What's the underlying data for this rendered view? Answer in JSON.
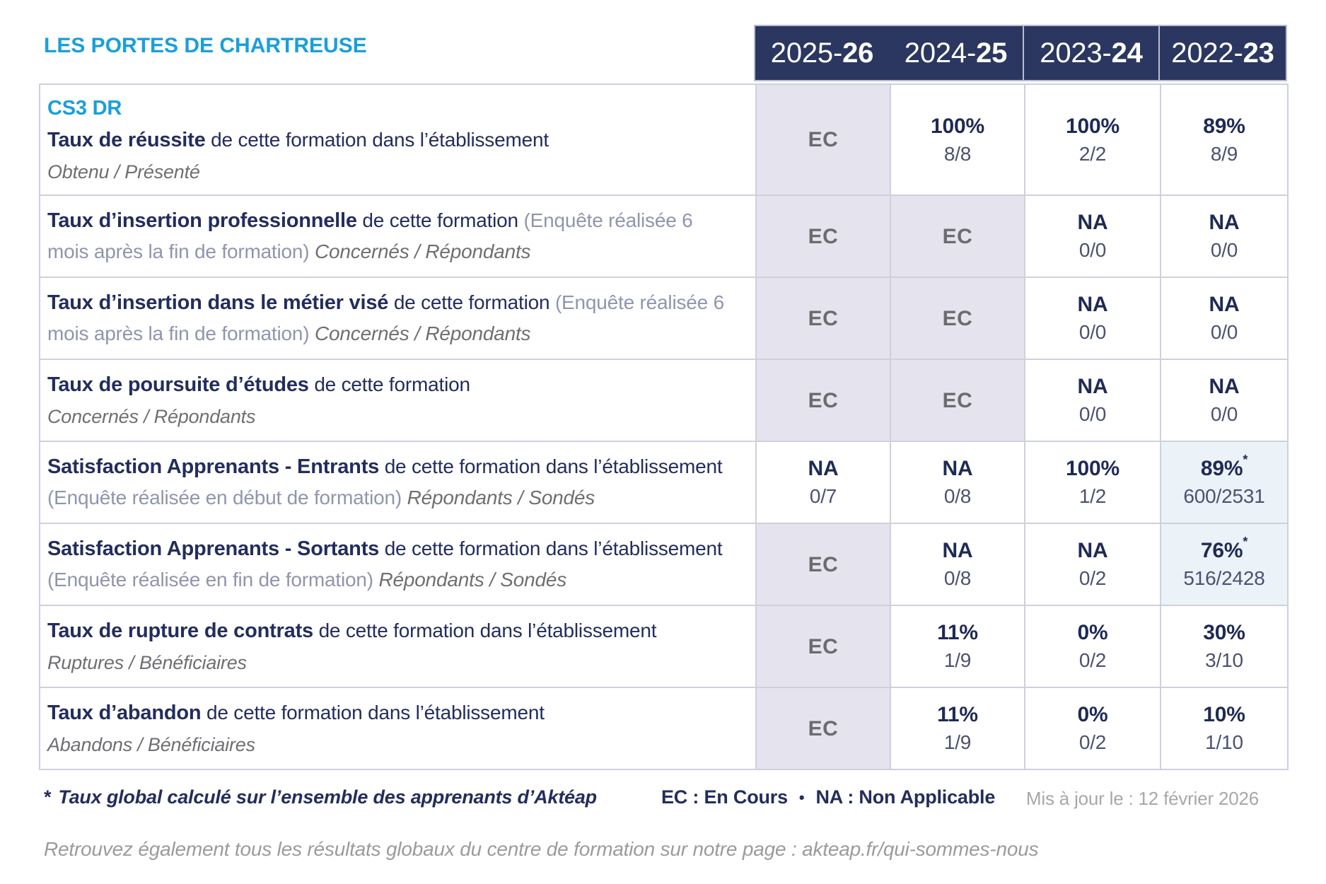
{
  "title": "LES PORTES DE CHARTREUSE",
  "header": {
    "years": [
      {
        "prefix": "2025-",
        "suffix": "26"
      },
      {
        "prefix": "2024-",
        "suffix": "25"
      },
      {
        "prefix": "2023-",
        "suffix": "24"
      },
      {
        "prefix": "2022-",
        "suffix": "23"
      }
    ]
  },
  "rows": [
    {
      "course": "CS3 DR",
      "bold": "Taux de réussite",
      "normal": "de cette formation dans l’établissement",
      "paren": "",
      "inline_sub": "",
      "block_sub": "Obtenu / Présenté",
      "cells": [
        {
          "bg": "gray",
          "main": "EC",
          "star": "",
          "sub": ""
        },
        {
          "bg": "white",
          "main": "100%",
          "star": "",
          "sub": "8/8"
        },
        {
          "bg": "white",
          "main": "100%",
          "star": "",
          "sub": "2/2"
        },
        {
          "bg": "white",
          "main": "89%",
          "star": "",
          "sub": "8/9"
        }
      ]
    },
    {
      "course": "",
      "bold": "Taux d’insertion professionnelle",
      "normal": "de cette formation",
      "paren": "(Enquête réalisée 6 mois après la fin de formation)",
      "inline_sub": "Concernés / Répondants",
      "block_sub": "",
      "cells": [
        {
          "bg": "gray",
          "main": "EC",
          "star": "",
          "sub": ""
        },
        {
          "bg": "gray",
          "main": "EC",
          "star": "",
          "sub": ""
        },
        {
          "bg": "white",
          "main": "NA",
          "star": "",
          "sub": "0/0"
        },
        {
          "bg": "white",
          "main": "NA",
          "star": "",
          "sub": "0/0"
        }
      ]
    },
    {
      "course": "",
      "bold": "Taux d’insertion dans le métier visé",
      "normal": "de cette formation",
      "paren": "(Enquête réalisée 6 mois après la fin de formation)",
      "inline_sub": "Concernés / Répondants",
      "block_sub": "",
      "cells": [
        {
          "bg": "gray",
          "main": "EC",
          "star": "",
          "sub": ""
        },
        {
          "bg": "gray",
          "main": "EC",
          "star": "",
          "sub": ""
        },
        {
          "bg": "white",
          "main": "NA",
          "star": "",
          "sub": "0/0"
        },
        {
          "bg": "white",
          "main": "NA",
          "star": "",
          "sub": "0/0"
        }
      ]
    },
    {
      "course": "",
      "bold": "Taux de poursuite d’études",
      "normal": "de cette formation",
      "paren": "",
      "inline_sub": "",
      "block_sub": "Concernés / Répondants",
      "cells": [
        {
          "bg": "gray",
          "main": "EC",
          "star": "",
          "sub": ""
        },
        {
          "bg": "gray",
          "main": "EC",
          "star": "",
          "sub": ""
        },
        {
          "bg": "white",
          "main": "NA",
          "star": "",
          "sub": "0/0"
        },
        {
          "bg": "white",
          "main": "NA",
          "star": "",
          "sub": "0/0"
        }
      ]
    },
    {
      "course": "",
      "bold": "Satisfaction Apprenants - Entrants",
      "normal": "de cette formation dans l’établissement",
      "paren": "(Enquête réalisée en début de formation)",
      "inline_sub": "Répondants / Sondés",
      "block_sub": "",
      "cells": [
        {
          "bg": "white",
          "main": "NA",
          "star": "",
          "sub": "0/7"
        },
        {
          "bg": "white",
          "main": "NA",
          "star": "",
          "sub": "0/8"
        },
        {
          "bg": "white",
          "main": "100%",
          "star": "",
          "sub": "1/2"
        },
        {
          "bg": "blue",
          "main": "89%",
          "star": "*",
          "sub": "600/2531"
        }
      ]
    },
    {
      "course": "",
      "bold": "Satisfaction Apprenants - Sortants",
      "normal": "de cette formation dans l’établissement",
      "paren": "(Enquête réalisée en fin de formation)",
      "inline_sub": "Répondants / Sondés",
      "block_sub": "",
      "cells": [
        {
          "bg": "gray",
          "main": "EC",
          "star": "",
          "sub": ""
        },
        {
          "bg": "white",
          "main": "NA",
          "star": "",
          "sub": "0/8"
        },
        {
          "bg": "white",
          "main": "NA",
          "star": "",
          "sub": "0/2"
        },
        {
          "bg": "blue",
          "main": "76%",
          "star": "*",
          "sub": "516/2428"
        }
      ]
    },
    {
      "course": "",
      "bold": "Taux de rupture de contrats",
      "normal": "de cette formation dans l’établissement",
      "paren": "",
      "inline_sub": "",
      "block_sub": "Ruptures / Bénéficiaires",
      "cells": [
        {
          "bg": "gray",
          "main": "EC",
          "star": "",
          "sub": ""
        },
        {
          "bg": "white",
          "main": "11%",
          "star": "",
          "sub": "1/9"
        },
        {
          "bg": "white",
          "main": "0%",
          "star": "",
          "sub": "0/2"
        },
        {
          "bg": "white",
          "main": "30%",
          "star": "",
          "sub": "3/10"
        }
      ]
    },
    {
      "course": "",
      "bold": "Taux d’abandon",
      "normal": "de cette formation dans l’établissement",
      "paren": "",
      "inline_sub": "",
      "block_sub": "Abandons / Bénéficiaires",
      "cells": [
        {
          "bg": "gray",
          "main": "EC",
          "star": "",
          "sub": ""
        },
        {
          "bg": "white",
          "main": "11%",
          "star": "",
          "sub": "1/9"
        },
        {
          "bg": "white",
          "main": "0%",
          "star": "",
          "sub": "0/2"
        },
        {
          "bg": "white",
          "main": "10%",
          "star": "",
          "sub": "1/10"
        }
      ]
    }
  ],
  "legend": {
    "star_symbol": "*",
    "star_note": "Taux global calculé sur l’ensemble des apprenants d’Aktéap",
    "ec": "EC : En Cours",
    "bullet": "•",
    "na": "NA : Non Applicable",
    "updated": "Mis à jour le : 12 février 2026"
  },
  "footer": {
    "text": "Retrouvez également tous les résultats globaux du centre de formation sur notre page : akteap.fr/qui-sommes-nous"
  },
  "colors": {
    "accent_blue": "#1a9fd9",
    "header_navy": "#2b3760",
    "text_navy": "#232d5c",
    "paren_gray": "#9095ad",
    "italic_gray": "#6f6f73",
    "ec_gray": "#6b6b70",
    "cell_gray_bg": "#e5e4ee",
    "cell_blue_bg": "#ebf3f9",
    "grid_gray": "#ced1dc"
  }
}
